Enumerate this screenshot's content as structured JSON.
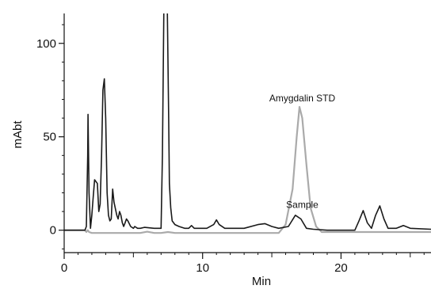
{
  "chart_data": {
    "type": "line",
    "title": "",
    "xlabel": "Min",
    "ylabel": "mAbt",
    "xlim": [
      0,
      26.5
    ],
    "ylim": [
      -12,
      116
    ],
    "xticks": [
      0,
      10,
      20
    ],
    "yticks": [
      0,
      50,
      100
    ],
    "grid": false,
    "legend": "none",
    "annotations": [
      {
        "text": "Amygdalin STD",
        "x": 17.2,
        "y": 69
      },
      {
        "text": "Sample",
        "x": 17.2,
        "y": 12
      }
    ],
    "series": [
      {
        "color": "#1a1a1a",
        "x": [
          0,
          1.5,
          1.6,
          1.7,
          1.72,
          1.8,
          1.9,
          2.0,
          2.1,
          2.2,
          2.4,
          2.5,
          2.6,
          2.7,
          2.8,
          2.9,
          3.0,
          3.1,
          3.2,
          3.3,
          3.4,
          3.5,
          3.6,
          3.8,
          3.9,
          4.0,
          4.1,
          4.2,
          4.3,
          4.4,
          4.5,
          4.6,
          4.8,
          5.0,
          5.1,
          5.3,
          5.5,
          5.8,
          6.5,
          7.0,
          7.1,
          7.2,
          7.3,
          7.4,
          7.45,
          7.55,
          7.6,
          7.7,
          7.8,
          8.0,
          8.3,
          8.7,
          9.0,
          9.2,
          9.4,
          9.7,
          10.3,
          10.8,
          11.0,
          11.2,
          11.6,
          13.0,
          14.0,
          14.5,
          15.0,
          15.5,
          16.2,
          16.7,
          17.1,
          17.5,
          18.0,
          19.0,
          21.0,
          21.3,
          21.6,
          21.9,
          22.2,
          22.5,
          22.8,
          23.1,
          23.4,
          24.0,
          24.5,
          25.0,
          26.5
        ],
        "y": [
          0,
          0,
          2,
          40,
          62,
          20,
          1,
          8,
          18,
          27,
          25,
          10,
          14,
          40,
          75,
          81,
          60,
          20,
          8,
          5,
          6,
          22,
          15,
          8,
          6,
          10,
          8,
          4,
          2,
          4,
          6,
          5,
          2,
          1,
          2,
          1,
          1,
          1.5,
          1,
          1,
          40,
          118,
          118,
          118,
          118,
          60,
          25,
          12,
          5,
          3,
          2,
          1,
          1,
          2.5,
          1,
          1,
          1,
          3,
          5.5,
          3,
          1,
          1,
          3,
          3.5,
          2,
          1,
          2,
          8,
          6,
          1,
          0.5,
          0,
          0,
          5,
          10.5,
          4,
          1,
          8,
          13,
          6,
          1,
          1,
          2.5,
          1,
          0.5
        ]
      },
      {
        "color": "#aaaaaa",
        "x": [
          0,
          1.5,
          1.6,
          1.7,
          1.8,
          2.0,
          5.5,
          6.0,
          6.5,
          7.0,
          7.5,
          8.0,
          15.5,
          16.0,
          16.5,
          16.8,
          17.0,
          17.2,
          17.5,
          17.8,
          18.2,
          18.6,
          26.5
        ],
        "y": [
          0,
          0,
          -1,
          0,
          -1,
          -1.5,
          -1.5,
          -0.8,
          -1.5,
          -1.5,
          -1,
          -1.5,
          -1.5,
          3,
          22,
          50,
          66,
          60,
          35,
          12,
          2,
          -1,
          -1
        ]
      }
    ]
  }
}
